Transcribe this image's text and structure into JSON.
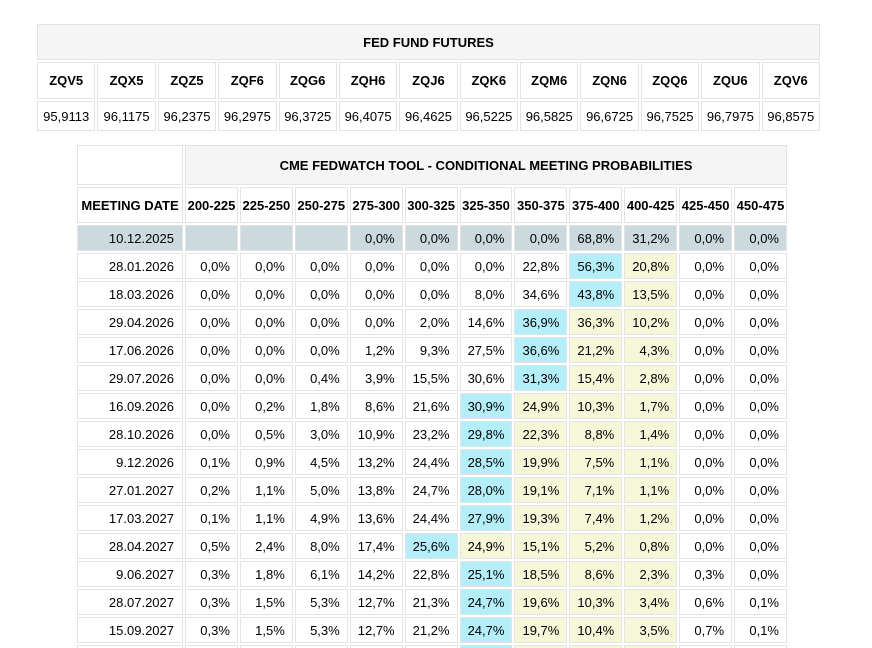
{
  "futures_table": {
    "title": "FED FUND FUTURES",
    "columns": [
      "ZQV5",
      "ZQX5",
      "ZQZ5",
      "ZQF6",
      "ZQG6",
      "ZQH6",
      "ZQJ6",
      "ZQK6",
      "ZQM6",
      "ZQN6",
      "ZQQ6",
      "ZQU6",
      "ZQV6"
    ],
    "values": [
      "95,9113",
      "96,1175",
      "96,2375",
      "96,2975",
      "96,3725",
      "96,4075",
      "96,4625",
      "96,5225",
      "96,5825",
      "96,6725",
      "96,7525",
      "96,7975",
      "96,8575"
    ]
  },
  "fedwatch_table": {
    "title": "CME FEDWATCH TOOL - CONDITIONAL MEETING PROBABILITIES",
    "date_column_header": "MEETING DATE",
    "range_columns": [
      "200-225",
      "225-250",
      "250-275",
      "275-300",
      "300-325",
      "325-350",
      "350-375",
      "375-400",
      "400-425",
      "425-450",
      "450-475"
    ],
    "rows": [
      {
        "date": "10.12.2025",
        "values": [
          "",
          "",
          "",
          "0,0%",
          "0,0%",
          "0,0%",
          "0,0%",
          "68,8%",
          "31,2%",
          "0,0%",
          "0,0%"
        ],
        "highlights": [
          "",
          "",
          "",
          "",
          "",
          "",
          "",
          "",
          "",
          "",
          ""
        ],
        "row_highlight": true
      },
      {
        "date": "28.01.2026",
        "values": [
          "0,0%",
          "0,0%",
          "0,0%",
          "0,0%",
          "0,0%",
          "0,0%",
          "22,8%",
          "56,3%",
          "20,8%",
          "0,0%",
          "0,0%"
        ],
        "highlights": [
          "",
          "",
          "",
          "",
          "",
          "",
          "",
          "c",
          "y",
          "",
          ""
        ],
        "row_highlight": false
      },
      {
        "date": "18.03.2026",
        "values": [
          "0,0%",
          "0,0%",
          "0,0%",
          "0,0%",
          "0,0%",
          "8,0%",
          "34,6%",
          "43,8%",
          "13,5%",
          "0,0%",
          "0,0%"
        ],
        "highlights": [
          "",
          "",
          "",
          "",
          "",
          "",
          "",
          "c",
          "y",
          "",
          ""
        ],
        "row_highlight": false
      },
      {
        "date": "29.04.2026",
        "values": [
          "0,0%",
          "0,0%",
          "0,0%",
          "0,0%",
          "2,0%",
          "14,6%",
          "36,9%",
          "36,3%",
          "10,2%",
          "0,0%",
          "0,0%"
        ],
        "highlights": [
          "",
          "",
          "",
          "",
          "",
          "",
          "c",
          "y",
          "y",
          "",
          ""
        ],
        "row_highlight": false
      },
      {
        "date": "17.06.2026",
        "values": [
          "0,0%",
          "0,0%",
          "0,0%",
          "1,2%",
          "9,3%",
          "27,5%",
          "36,6%",
          "21,2%",
          "4,3%",
          "0,0%",
          "0,0%"
        ],
        "highlights": [
          "",
          "",
          "",
          "",
          "",
          "",
          "c",
          "y",
          "y",
          "",
          ""
        ],
        "row_highlight": false
      },
      {
        "date": "29.07.2026",
        "values": [
          "0,0%",
          "0,0%",
          "0,4%",
          "3,9%",
          "15,5%",
          "30,6%",
          "31,3%",
          "15,4%",
          "2,8%",
          "0,0%",
          "0,0%"
        ],
        "highlights": [
          "",
          "",
          "",
          "",
          "",
          "",
          "c",
          "y",
          "y",
          "",
          ""
        ],
        "row_highlight": false
      },
      {
        "date": "16.09.2026",
        "values": [
          "0,0%",
          "0,2%",
          "1,8%",
          "8,6%",
          "21,6%",
          "30,9%",
          "24,9%",
          "10,3%",
          "1,7%",
          "0,0%",
          "0,0%"
        ],
        "highlights": [
          "",
          "",
          "",
          "",
          "",
          "c",
          "y",
          "y",
          "y",
          "",
          ""
        ],
        "row_highlight": false
      },
      {
        "date": "28.10.2026",
        "values": [
          "0,0%",
          "0,5%",
          "3,0%",
          "10,9%",
          "23,2%",
          "29,8%",
          "22,3%",
          "8,8%",
          "1,4%",
          "0,0%",
          "0,0%"
        ],
        "highlights": [
          "",
          "",
          "",
          "",
          "",
          "c",
          "y",
          "y",
          "y",
          "",
          ""
        ],
        "row_highlight": false
      },
      {
        "date": "9.12.2026",
        "values": [
          "0,1%",
          "0,9%",
          "4,5%",
          "13,2%",
          "24,4%",
          "28,5%",
          "19,9%",
          "7,5%",
          "1,1%",
          "0,0%",
          "0,0%"
        ],
        "highlights": [
          "",
          "",
          "",
          "",
          "",
          "c",
          "y",
          "y",
          "y",
          "",
          ""
        ],
        "row_highlight": false
      },
      {
        "date": "27.01.2027",
        "values": [
          "0,2%",
          "1,1%",
          "5,0%",
          "13,8%",
          "24,7%",
          "28,0%",
          "19,1%",
          "7,1%",
          "1,1%",
          "0,0%",
          "0,0%"
        ],
        "highlights": [
          "",
          "",
          "",
          "",
          "",
          "c",
          "y",
          "y",
          "y",
          "",
          ""
        ],
        "row_highlight": false
      },
      {
        "date": "17.03.2027",
        "values": [
          "0,1%",
          "1,1%",
          "4,9%",
          "13,6%",
          "24,4%",
          "27,9%",
          "19,3%",
          "7,4%",
          "1,2%",
          "0,0%",
          "0,0%"
        ],
        "highlights": [
          "",
          "",
          "",
          "",
          "",
          "c",
          "y",
          "y",
          "y",
          "",
          ""
        ],
        "row_highlight": false
      },
      {
        "date": "28.04.2027",
        "values": [
          "0,5%",
          "2,4%",
          "8,0%",
          "17,4%",
          "25,6%",
          "24,9%",
          "15,1%",
          "5,2%",
          "0,8%",
          "0,0%",
          "0,0%"
        ],
        "highlights": [
          "",
          "",
          "",
          "",
          "c",
          "y",
          "y",
          "y",
          "y",
          "",
          ""
        ],
        "row_highlight": false
      },
      {
        "date": "9.06.2027",
        "values": [
          "0,3%",
          "1,8%",
          "6,1%",
          "14,2%",
          "22,8%",
          "25,1%",
          "18,5%",
          "8,6%",
          "2,3%",
          "0,3%",
          "0,0%"
        ],
        "highlights": [
          "",
          "",
          "",
          "",
          "",
          "c",
          "y",
          "y",
          "y",
          "",
          ""
        ],
        "row_highlight": false
      },
      {
        "date": "28.07.2027",
        "values": [
          "0,3%",
          "1,5%",
          "5,3%",
          "12,7%",
          "21,3%",
          "24,7%",
          "19,6%",
          "10,3%",
          "3,4%",
          "0,6%",
          "0,1%"
        ],
        "highlights": [
          "",
          "",
          "",
          "",
          "",
          "c",
          "y",
          "y",
          "y",
          "",
          ""
        ],
        "row_highlight": false
      },
      {
        "date": "15.09.2027",
        "values": [
          "0,3%",
          "1,5%",
          "5,3%",
          "12,7%",
          "21,2%",
          "24,7%",
          "19,7%",
          "10,4%",
          "3,5%",
          "0,7%",
          "0,1%"
        ],
        "highlights": [
          "",
          "",
          "",
          "",
          "",
          "c",
          "y",
          "y",
          "y",
          "",
          ""
        ],
        "row_highlight": false
      },
      {
        "date": "",
        "values": [
          "",
          "",
          "",
          "",
          "",
          "",
          "",
          "",
          "",
          "",
          ""
        ],
        "highlights": [
          "",
          "",
          "",
          "",
          "",
          "c",
          "y",
          "y",
          "y",
          "",
          ""
        ],
        "row_highlight": false
      }
    ]
  },
  "colors": {
    "row_highlight_bg": "#ccd9dd",
    "cyan_highlight_bg": "#b3eef9",
    "yellow_highlight_bg": "#f6f6d9",
    "title_bar_bg": "#f5f5f5",
    "border": "#e3e3e3",
    "text": "#000000",
    "page_bg": "#ffffff"
  }
}
